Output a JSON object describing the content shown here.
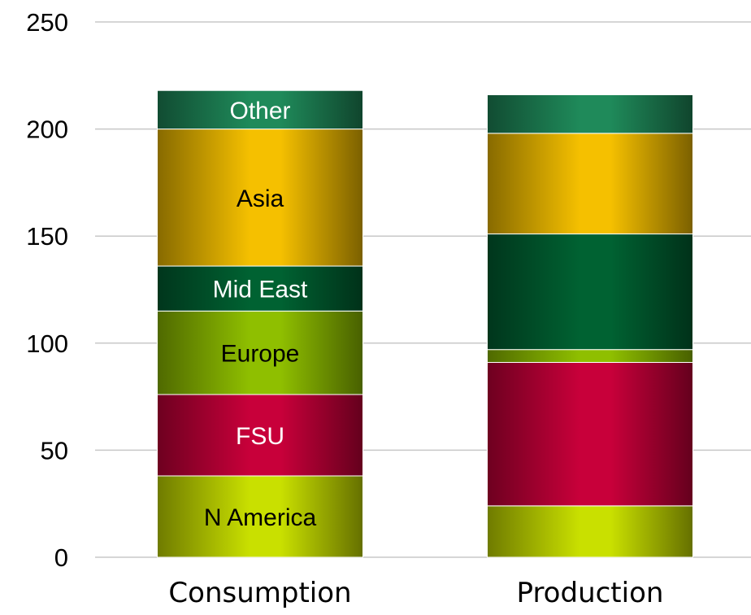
{
  "chart_data": {
    "type": "bar",
    "stacked": true,
    "title": "",
    "xlabel": "",
    "ylabel": "",
    "ylim": [
      0,
      250
    ],
    "yticks": [
      0,
      50,
      100,
      150,
      200,
      250
    ],
    "grid": true,
    "categories": [
      "Consumption",
      "Production"
    ],
    "series": [
      {
        "name": "N America",
        "values": [
          38,
          24
        ],
        "color": "#c9e000",
        "text_color": "#000000"
      },
      {
        "name": "FSU",
        "values": [
          38,
          67
        ],
        "color": "#c8003a",
        "text_color": "#ffffff"
      },
      {
        "name": "Europe",
        "values": [
          39,
          6
        ],
        "color": "#8fbf00",
        "text_color": "#000000"
      },
      {
        "name": "Mid East",
        "values": [
          21,
          54
        ],
        "color": "#006232",
        "text_color": "#ffffff"
      },
      {
        "name": "Asia",
        "values": [
          64,
          47
        ],
        "color": "#f5c000",
        "text_color": "#000000"
      },
      {
        "name": "Other",
        "values": [
          18,
          18
        ],
        "color": "#1f8a5a",
        "text_color": "#ffffff"
      }
    ],
    "segment_labels_on": "Consumption"
  }
}
